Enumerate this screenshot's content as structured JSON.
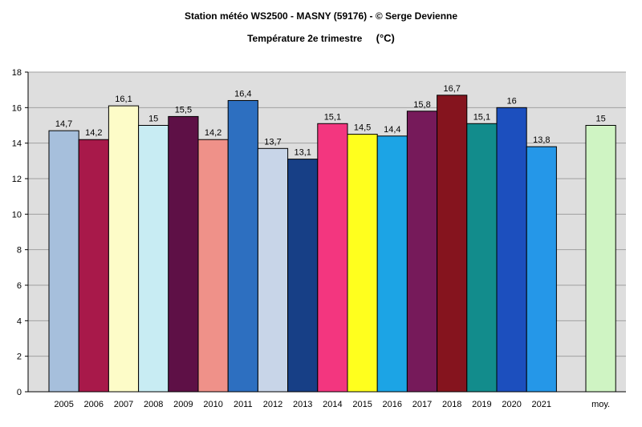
{
  "chart_data": {
    "type": "bar",
    "title": "Station météo WS2500 - MASNY (59176) - © Serge Devienne",
    "subtitle": "Température 2e trimestre",
    "unit": "(°C)",
    "ylim": [
      0,
      18
    ],
    "yticks": [
      0,
      2,
      4,
      6,
      8,
      10,
      12,
      14,
      16,
      18
    ],
    "grid": true,
    "categories": [
      "2005",
      "2006",
      "2007",
      "2008",
      "2009",
      "2010",
      "2011",
      "2012",
      "2013",
      "2014",
      "2015",
      "2016",
      "2017",
      "2018",
      "2019",
      "2020",
      "2021",
      "moy."
    ],
    "values": [
      14.7,
      14.2,
      16.1,
      15,
      15.5,
      14.2,
      16.4,
      13.7,
      13.1,
      15.1,
      14.5,
      14.4,
      15.8,
      16.7,
      15.1,
      16,
      13.8,
      15
    ],
    "value_labels": [
      "14,7",
      "14,2",
      "16,1",
      "15",
      "15,5",
      "14,2",
      "16,4",
      "13,7",
      "13,1",
      "15,1",
      "14,5",
      "14,4",
      "15,8",
      "16,7",
      "15,1",
      "16",
      "13,8",
      "15"
    ],
    "colors": [
      "#a6bfdc",
      "#a8194a",
      "#fdfcc8",
      "#c8ecf3",
      "#5e1046",
      "#ef9189",
      "#2d6fc0",
      "#c8d5e8",
      "#173f86",
      "#f3367f",
      "#ffff1e",
      "#1ca4e5",
      "#761a5a",
      "#85141e",
      "#128c8c",
      "#1c4fbe",
      "#2597e8",
      "#cff4c3"
    ]
  }
}
